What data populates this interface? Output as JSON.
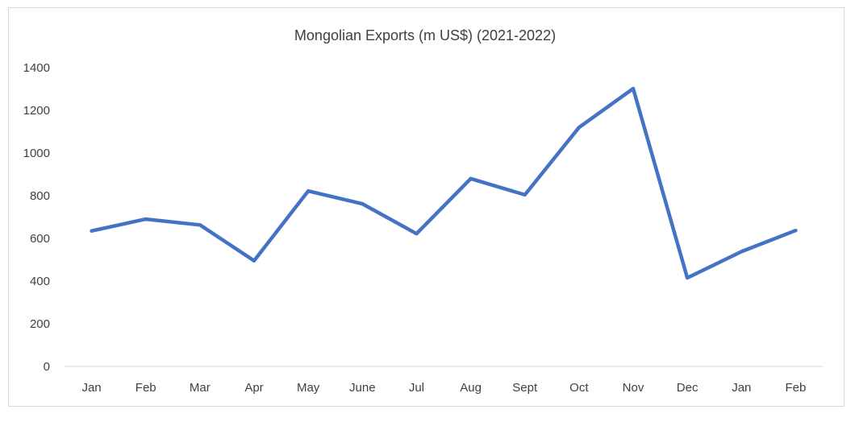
{
  "chart_data": {
    "type": "line",
    "title": "Mongolian Exports (m US$) (2021-2022)",
    "xlabel": "",
    "ylabel": "",
    "categories": [
      "Jan",
      "Feb",
      "Mar",
      "Apr",
      "May",
      "June",
      "Jul",
      "Aug",
      "Sept",
      "Oct",
      "Nov",
      "Dec",
      "Jan",
      "Feb"
    ],
    "series": [
      {
        "values": [
          635,
          690,
          663,
          495,
          822,
          762,
          622,
          880,
          804,
          1120,
          1302,
          415,
          538,
          637
        ],
        "color": "#4472c4"
      }
    ],
    "ylim": [
      0,
      1400
    ],
    "yticks": [
      0,
      200,
      400,
      600,
      800,
      1000,
      1200,
      1400
    ],
    "grid": false,
    "legend": "none"
  }
}
